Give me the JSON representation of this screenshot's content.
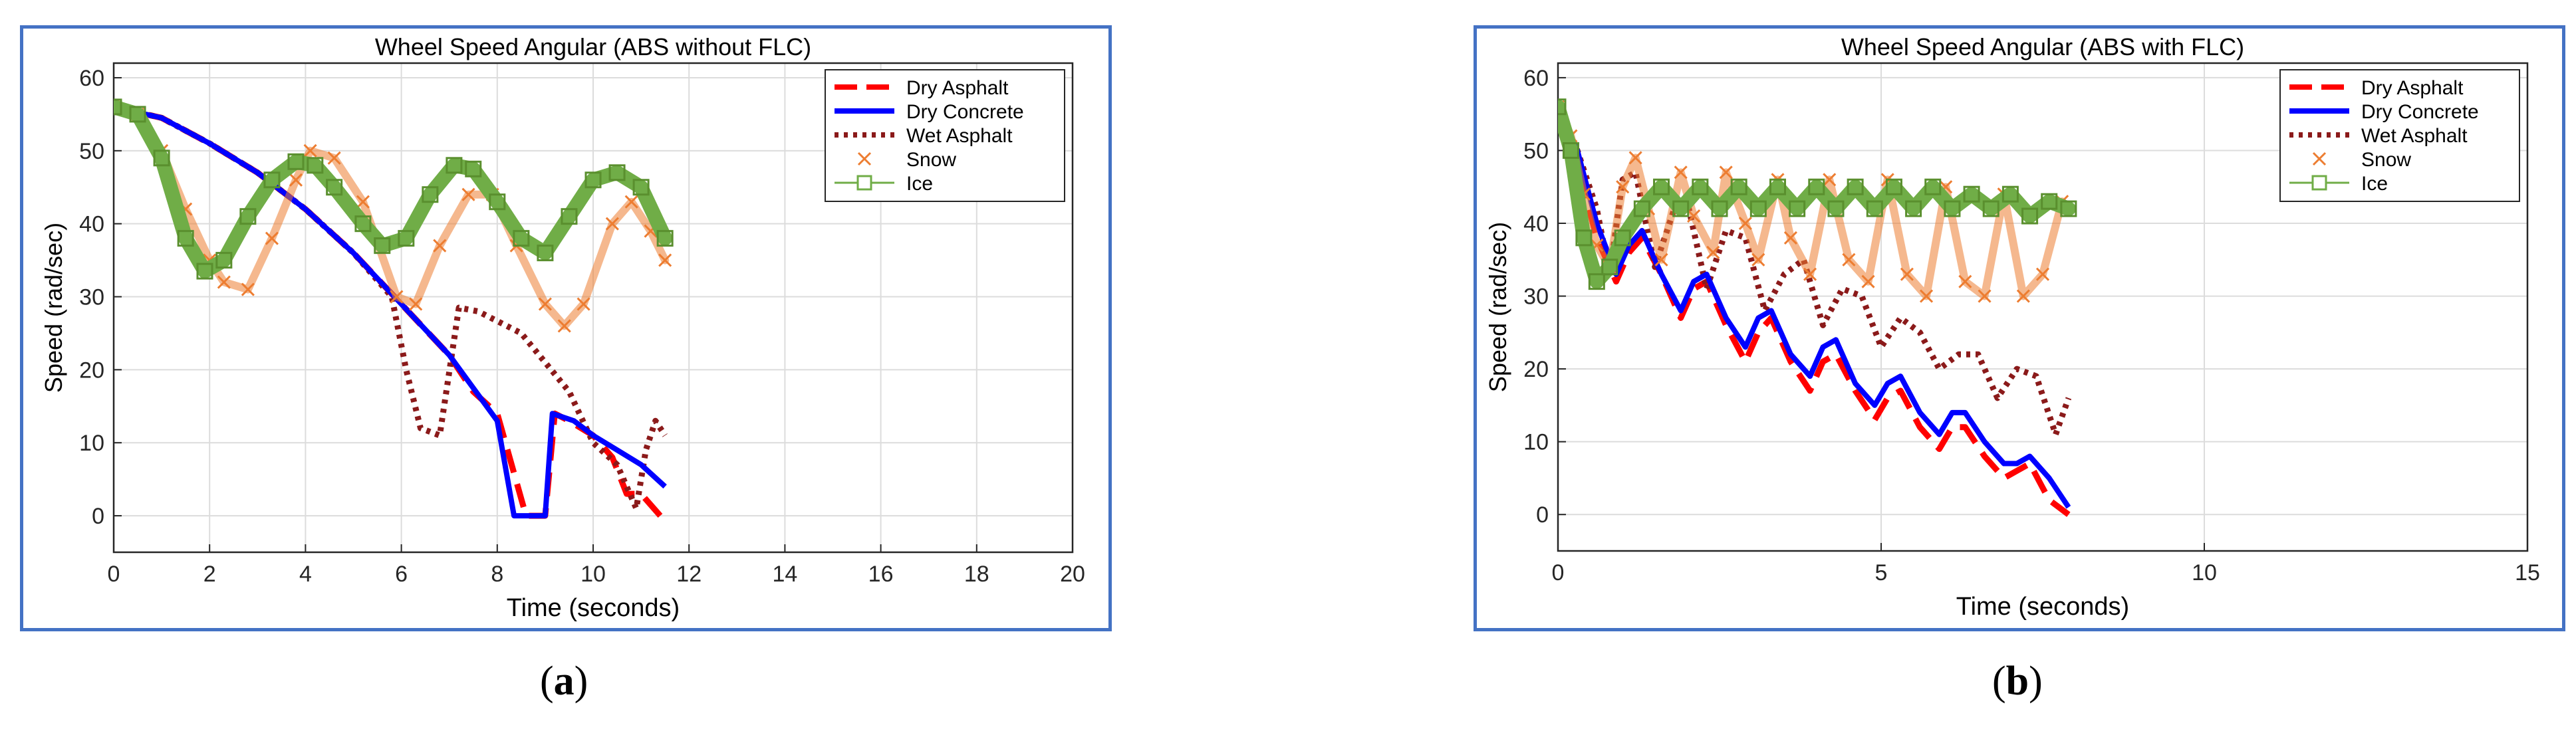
{
  "captions": [
    {
      "open": "(",
      "letter": "a",
      "close": ")"
    },
    {
      "open": "(",
      "letter": "b",
      "close": ")"
    }
  ],
  "chart_data": [
    {
      "type": "line",
      "title": "Wheel Speed Angular (ABS without FLC)",
      "xlabel": "Time (seconds)",
      "ylabel": "Speed (rad/sec)",
      "xlim": [
        0,
        20
      ],
      "ylim": [
        -5,
        62
      ],
      "xticks": [
        "0",
        "2",
        "4",
        "6",
        "8",
        "10",
        "12",
        "14",
        "16",
        "18",
        "20"
      ],
      "yticks": [
        "0",
        "10",
        "20",
        "30",
        "40",
        "50",
        "60"
      ],
      "grid": true,
      "legend_position": "top-right",
      "series": [
        {
          "name": "Dry Asphalt",
          "color": "#ff0000",
          "style": "dashed",
          "x": [
            0,
            1,
            2,
            3,
            4,
            5,
            6,
            7,
            7.5,
            8,
            8.6,
            8.8,
            9.0,
            9.2,
            9.5,
            10,
            10.4,
            10.7,
            11.0,
            11.4
          ],
          "y": [
            56,
            54.5,
            51,
            47,
            42,
            36,
            29,
            22,
            17,
            14,
            0,
            0,
            0,
            14,
            13,
            11,
            8,
            3,
            3,
            0
          ]
        },
        {
          "name": "Dry Concrete",
          "color": "#0000ff",
          "style": "solid",
          "x": [
            0,
            1,
            2,
            3,
            4,
            5,
            6,
            7,
            7.5,
            8,
            8.35,
            8.5,
            9.0,
            9.15,
            9.6,
            10,
            10.5,
            11.0,
            11.5
          ],
          "y": [
            56,
            54.5,
            51,
            47,
            42,
            36,
            29,
            22,
            17.5,
            13,
            0,
            0,
            0,
            14,
            13,
            11,
            9,
            7,
            4
          ]
        },
        {
          "name": "Wet Asphalt",
          "color": "#8b1a1a",
          "style": "dotted",
          "x": [
            0,
            1,
            2,
            3,
            4,
            5,
            5.8,
            6.1,
            6.4,
            6.8,
            7.2,
            7.6,
            8.5,
            9.5,
            10.0,
            10.5,
            10.9,
            11.1,
            11.3,
            11.5
          ],
          "y": [
            56,
            54.5,
            51,
            47,
            42,
            36,
            30,
            20,
            12,
            11,
            28.5,
            28,
            25,
            17,
            10,
            7,
            1,
            9,
            13,
            11
          ]
        },
        {
          "name": "Snow",
          "color": "#ed7d31",
          "marker": "x",
          "x": [
            0,
            0.5,
            1,
            1.5,
            2,
            2.3,
            2.8,
            3.3,
            3.8,
            4.1,
            4.6,
            5.2,
            5.9,
            6.3,
            6.8,
            7.4,
            7.9,
            8.4,
            9.0,
            9.4,
            9.8,
            10.4,
            10.8,
            11.2,
            11.5
          ],
          "y": [
            56,
            55,
            50,
            42,
            35,
            32,
            31,
            38,
            46,
            50,
            49,
            43,
            30,
            29,
            37,
            44,
            44,
            37,
            29,
            26,
            29,
            40,
            43,
            39,
            35
          ]
        },
        {
          "name": "Ice",
          "color": "#70ad47",
          "marker": "square",
          "x": [
            0,
            0.5,
            1,
            1.5,
            1.9,
            2.3,
            2.8,
            3.3,
            3.8,
            4.2,
            4.6,
            5.2,
            5.6,
            6.1,
            6.6,
            7.1,
            7.5,
            8.0,
            8.5,
            9.0,
            9.5,
            10.0,
            10.5,
            11.0,
            11.5
          ],
          "y": [
            56,
            55,
            49,
            38,
            33.5,
            35,
            41,
            46,
            48.5,
            48,
            45,
            40,
            37,
            38,
            44,
            48,
            47.5,
            43,
            38,
            36,
            41,
            46,
            47,
            45,
            38
          ]
        }
      ]
    },
    {
      "type": "line",
      "title": "Wheel Speed Angular (ABS with FLC)",
      "xlabel": "Time (seconds)",
      "ylabel": "Speed (rad/sec)",
      "xlim": [
        0,
        15
      ],
      "ylim": [
        -5,
        62
      ],
      "xticks": [
        "0",
        "5",
        "10",
        "15"
      ],
      "yticks": [
        "0",
        "10",
        "20",
        "30",
        "40",
        "50",
        "60"
      ],
      "grid": true,
      "legend_position": "top-right",
      "series": [
        {
          "name": "Dry Asphalt",
          "color": "#ff0000",
          "style": "dashed",
          "x": [
            0,
            0.3,
            0.6,
            0.9,
            1.1,
            1.3,
            1.6,
            1.9,
            2.1,
            2.3,
            2.6,
            2.9,
            3.1,
            3.3,
            3.6,
            3.9,
            4.1,
            4.3,
            4.6,
            4.9,
            5.1,
            5.3,
            5.6,
            5.9,
            6.1,
            6.3,
            6.6,
            6.9,
            7.1,
            7.3,
            7.6,
            7.9
          ],
          "y": [
            56,
            48,
            38,
            32,
            36,
            38,
            33,
            27,
            31,
            32,
            26,
            21,
            25,
            27,
            21,
            17,
            21,
            22,
            17,
            13,
            16,
            17,
            12,
            9,
            12,
            12,
            8,
            5,
            6,
            7,
            2,
            0
          ]
        },
        {
          "name": "Dry Concrete",
          "color": "#0000ff",
          "style": "solid",
          "x": [
            0,
            0.3,
            0.6,
            0.9,
            1.1,
            1.3,
            1.6,
            1.9,
            2.1,
            2.3,
            2.6,
            2.9,
            3.1,
            3.3,
            3.6,
            3.9,
            4.1,
            4.3,
            4.6,
            4.9,
            5.1,
            5.3,
            5.6,
            5.9,
            6.1,
            6.3,
            6.6,
            6.9,
            7.1,
            7.3,
            7.6,
            7.9
          ],
          "y": [
            56,
            50,
            40,
            33,
            37,
            39,
            33,
            28,
            32,
            33,
            27,
            23,
            27,
            28,
            22,
            19,
            23,
            24,
            18,
            15,
            18,
            19,
            14,
            11,
            14,
            14,
            10,
            7,
            7,
            8,
            5,
            1
          ]
        },
        {
          "name": "Wet Asphalt",
          "color": "#8b1a1a",
          "style": "dotted",
          "x": [
            0,
            0.3,
            0.6,
            0.8,
            1.0,
            1.2,
            1.5,
            1.8,
            2.0,
            2.3,
            2.6,
            2.9,
            3.2,
            3.5,
            3.8,
            4.1,
            4.4,
            4.7,
            5.0,
            5.3,
            5.6,
            5.9,
            6.2,
            6.5,
            6.8,
            7.1,
            7.4,
            7.7,
            7.9
          ],
          "y": [
            56,
            50,
            42,
            33,
            46,
            47,
            34,
            42,
            43,
            31,
            39,
            38,
            28,
            33,
            35,
            26,
            31,
            30,
            23,
            27,
            25,
            20,
            22,
            22,
            16,
            20,
            19,
            11,
            16
          ]
        },
        {
          "name": "Snow",
          "color": "#ed7d31",
          "marker": "x",
          "x": [
            0,
            0.2,
            0.4,
            0.6,
            0.8,
            1.0,
            1.2,
            1.4,
            1.6,
            1.9,
            2.1,
            2.4,
            2.6,
            2.9,
            3.1,
            3.4,
            3.6,
            3.9,
            4.2,
            4.5,
            4.8,
            5.1,
            5.4,
            5.7,
            6.0,
            6.3,
            6.6,
            6.9,
            7.2,
            7.5,
            7.8
          ],
          "y": [
            56,
            52,
            44,
            37,
            34,
            45,
            49,
            42,
            35,
            47,
            41,
            36,
            47,
            40,
            35,
            46,
            38,
            33,
            46,
            35,
            32,
            46,
            33,
            30,
            45,
            32,
            30,
            44,
            30,
            33,
            43
          ]
        },
        {
          "name": "Ice",
          "color": "#70ad47",
          "marker": "square",
          "x": [
            0,
            0.2,
            0.4,
            0.6,
            0.8,
            1.0,
            1.3,
            1.6,
            1.9,
            2.2,
            2.5,
            2.8,
            3.1,
            3.4,
            3.7,
            4.0,
            4.3,
            4.6,
            4.9,
            5.2,
            5.5,
            5.8,
            6.1,
            6.4,
            6.7,
            7.0,
            7.3,
            7.6,
            7.9
          ],
          "y": [
            56,
            50,
            38,
            32,
            34,
            38,
            42,
            45,
            42,
            45,
            42,
            45,
            42,
            45,
            42,
            45,
            42,
            45,
            42,
            45,
            42,
            45,
            42,
            44,
            42,
            44,
            41,
            43,
            42
          ]
        }
      ]
    }
  ]
}
